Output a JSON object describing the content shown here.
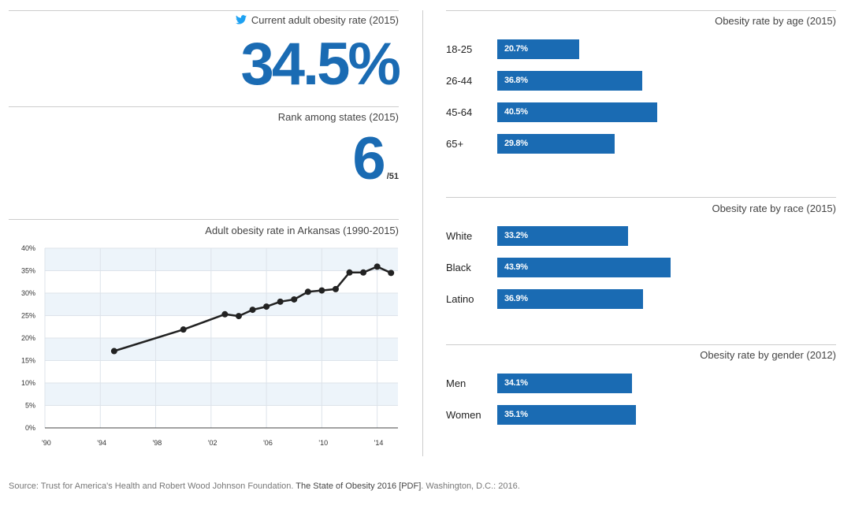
{
  "headline": {
    "label": "Current adult obesity rate (2015)",
    "value": "34.5%",
    "icon": "twitter-icon"
  },
  "rank": {
    "label": "Rank among states (2015)",
    "value": "6",
    "suffix": "/51"
  },
  "line_chart": {
    "title": "Adult obesity rate in Arkansas (1990-2015)"
  },
  "age": {
    "title": "Obesity rate by age (2015)",
    "rows": [
      {
        "label": "18-25",
        "text": "20.7%",
        "value": 20.7
      },
      {
        "label": "26-44",
        "text": "36.8%",
        "value": 36.8
      },
      {
        "label": "45-64",
        "text": "40.5%",
        "value": 40.5
      },
      {
        "label": "65+",
        "text": "29.8%",
        "value": 29.8
      }
    ]
  },
  "race": {
    "title": "Obesity rate by race (2015)",
    "rows": [
      {
        "label": "White",
        "text": "33.2%",
        "value": 33.2
      },
      {
        "label": "Black",
        "text": "43.9%",
        "value": 43.9
      },
      {
        "label": "Latino",
        "text": "36.9%",
        "value": 36.9
      }
    ]
  },
  "gender": {
    "title": "Obesity rate by gender (2012)",
    "rows": [
      {
        "label": "Men",
        "text": "34.1%",
        "value": 34.1
      },
      {
        "label": "Women",
        "text": "35.1%",
        "value": 35.1
      }
    ]
  },
  "source": {
    "prefix": "Source: Trust for America's Health and Robert Wood Johnson Foundation. ",
    "title": "The State of Obesity 2016 [PDF]",
    "suffix": ". Washington, D.C.: 2016."
  },
  "colors": {
    "accent": "#1a6bb3",
    "band": "#edf4fa",
    "line": "#222222"
  },
  "chart_data": [
    {
      "type": "line",
      "title": "Adult obesity rate in Arkansas (1990-2015)",
      "x": [
        1995,
        2000,
        2003,
        2004,
        2005,
        2006,
        2007,
        2008,
        2009,
        2010,
        2011,
        2012,
        2013,
        2014,
        2015
      ],
      "series": [
        {
          "values": [
            17.1,
            21.9,
            25.3,
            24.9,
            26.3,
            27.0,
            28.1,
            28.6,
            30.3,
            30.6,
            30.9,
            34.6,
            34.6,
            35.9,
            34.5
          ]
        }
      ],
      "xlim": [
        1990,
        2015.5
      ],
      "ylim": [
        0,
        40
      ],
      "xticks": [
        1990,
        1994,
        1998,
        2002,
        2006,
        2010,
        2014
      ],
      "xtick_labels": [
        "'90",
        "'94",
        "'98",
        "'02",
        "'06",
        "'10",
        "'14"
      ],
      "yticks": [
        0,
        5,
        10,
        15,
        20,
        25,
        30,
        35,
        40
      ],
      "ytick_labels": [
        "0%",
        "5%",
        "10%",
        "15%",
        "20%",
        "25%",
        "30%",
        "35%",
        "40%"
      ],
      "grid": true
    },
    {
      "type": "bar",
      "title": "Obesity rate by age (2015)",
      "categories": [
        "18-25",
        "26-44",
        "45-64",
        "65+"
      ],
      "values": [
        20.7,
        36.8,
        40.5,
        29.8
      ]
    },
    {
      "type": "bar",
      "title": "Obesity rate by race (2015)",
      "categories": [
        "White",
        "Black",
        "Latino"
      ],
      "values": [
        33.2,
        43.9,
        36.9
      ]
    },
    {
      "type": "bar",
      "title": "Obesity rate by gender (2012)",
      "categories": [
        "Men",
        "Women"
      ],
      "values": [
        34.1,
        35.1
      ]
    }
  ]
}
